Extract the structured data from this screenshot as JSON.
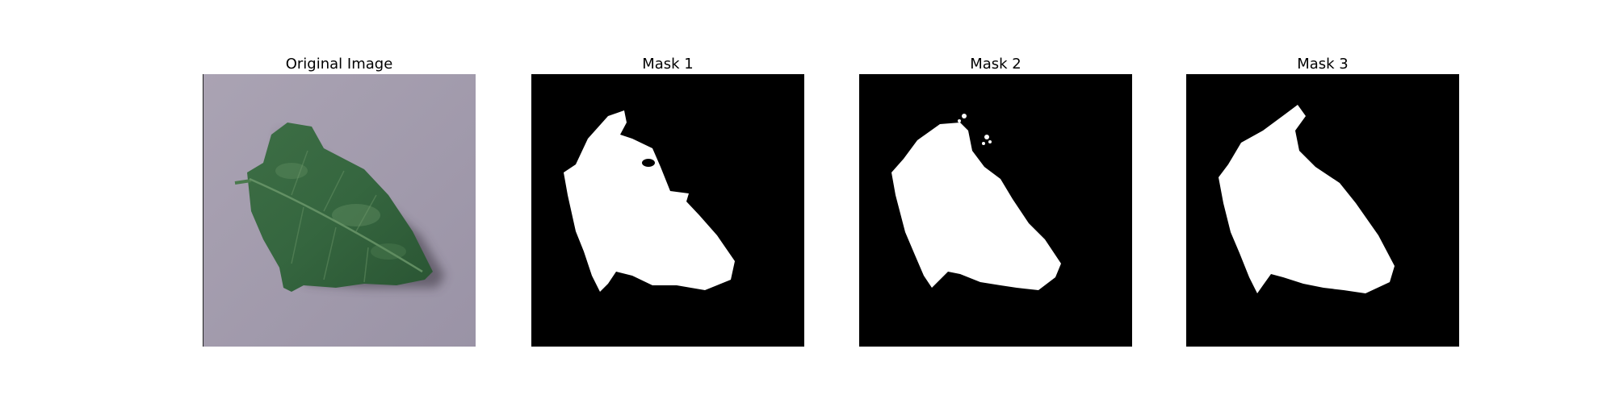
{
  "figure": {
    "background": "#ffffff",
    "panels": [
      {
        "title": "Original Image",
        "kind": "photo",
        "content": "leaf-photo"
      },
      {
        "title": "Mask 1",
        "kind": "mask",
        "content": "leaf-mask"
      },
      {
        "title": "Mask 2",
        "kind": "mask",
        "content": "leaf-mask"
      },
      {
        "title": "Mask 3",
        "kind": "mask",
        "content": "leaf-mask"
      }
    ],
    "colors": {
      "mask_foreground": "#ffffff",
      "mask_background": "#000000",
      "photo_background": "#a29bac",
      "leaf_dark": "#2e5a36",
      "leaf_mid": "#3f7248",
      "leaf_light": "#5a8c5e"
    }
  }
}
